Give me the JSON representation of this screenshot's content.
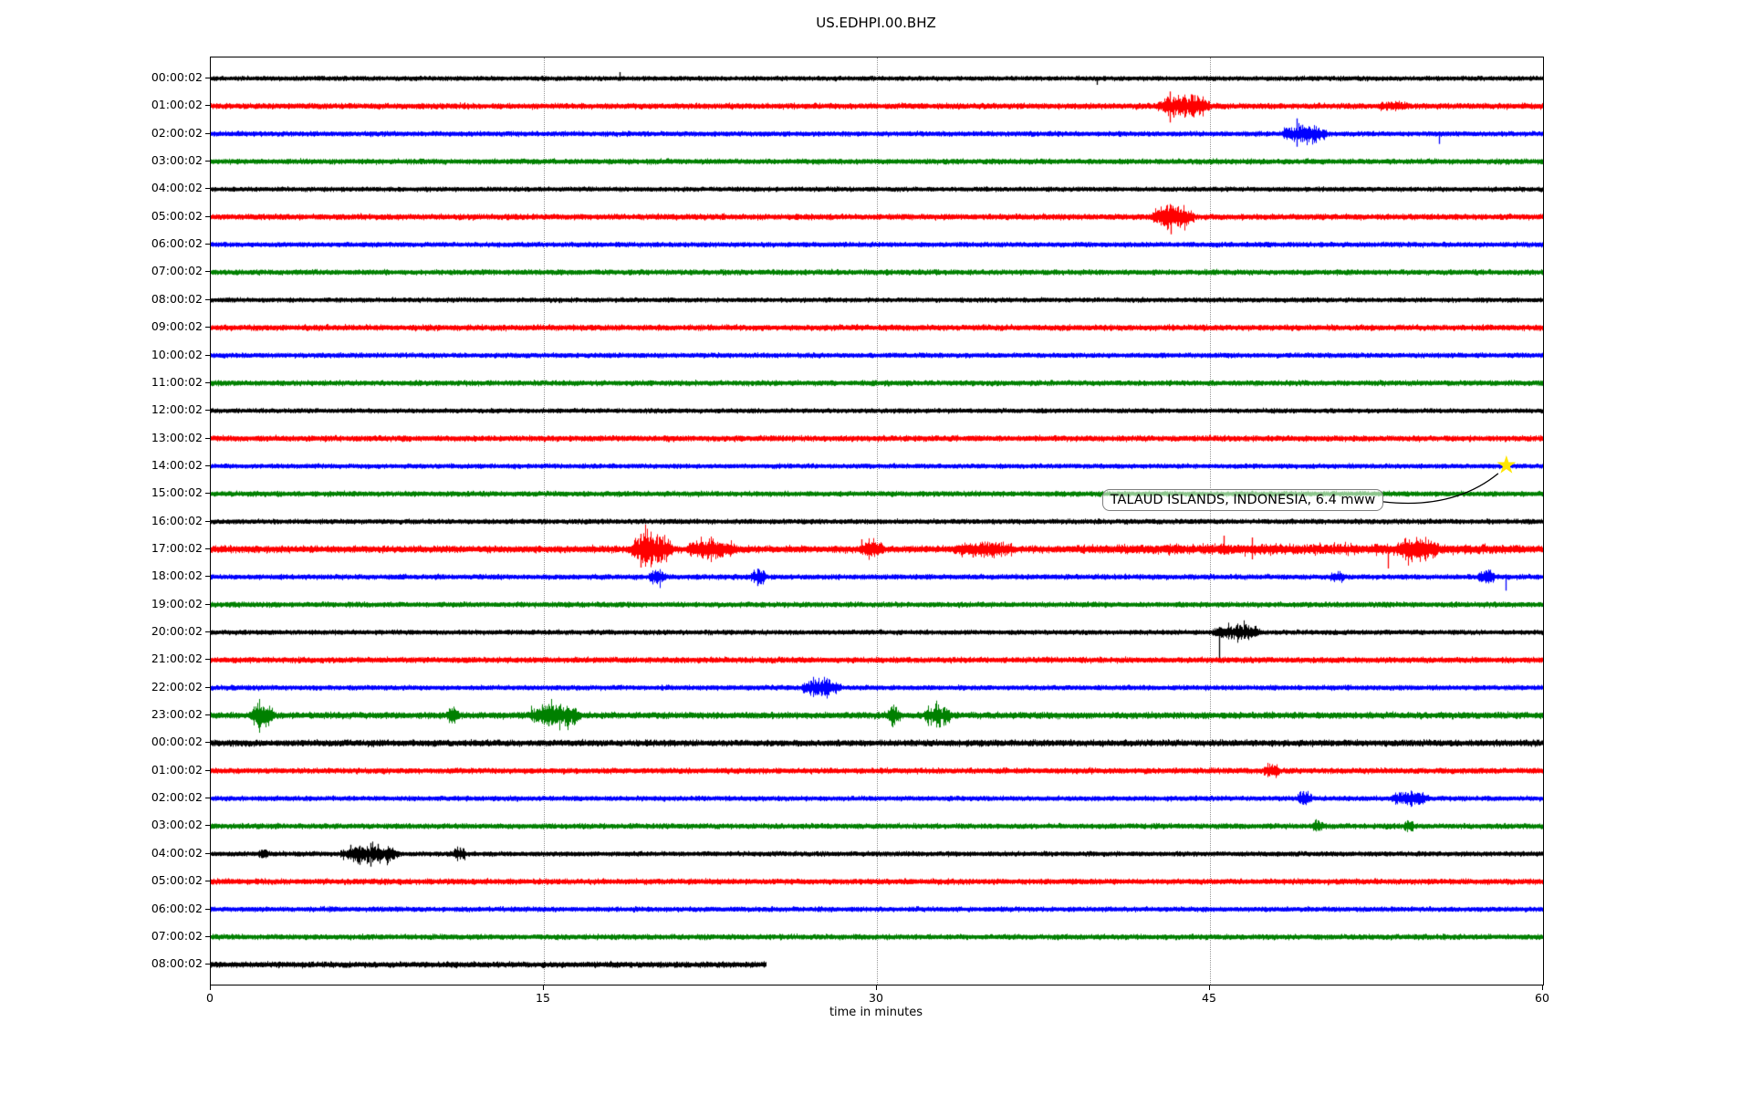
{
  "title": "US.EDHPI.00.BHZ",
  "xlabel": "time in minutes",
  "x_ticks": [
    "0",
    "15",
    "30",
    "45",
    "60"
  ],
  "annotation": {
    "label": "TALAUD ISLANDS, INDONESIA, 6.4 mww",
    "marker": "star",
    "marker_row": 14,
    "marker_minute": 58.35,
    "box_right_minute": 52.8,
    "box_center_row": 15.25
  },
  "colors": {
    "black": "#000000",
    "red": "#ff0000",
    "blue": "#0000ff",
    "green": "#008000",
    "grid": "#999999",
    "star": "#ffe600"
  },
  "chart_data": {
    "type": "line",
    "subtype": "helicorder-seismogram",
    "title": "US.EDHPI.00.BHZ",
    "xlabel": "time in minutes",
    "x_range_minutes": [
      0,
      60
    ],
    "x_tick_minutes": [
      0,
      15,
      30,
      45,
      60
    ],
    "gridline_minutes": [
      15,
      30,
      45
    ],
    "grid": "vertical-dotted",
    "legend": "none",
    "event_annotation": {
      "text": "TALAUD ISLANDS, INDONESIA, 6.4 mww",
      "row_label": "14:00:02",
      "minute": 58.35
    },
    "rows": [
      {
        "label": "00:00:02",
        "color": "black",
        "noise": 1.25,
        "end": 60,
        "events": [],
        "spikes": [
          {
            "t": 18.4,
            "up": 7,
            "down": 3
          },
          {
            "t": 39.9,
            "up": 2,
            "down": 7
          }
        ]
      },
      {
        "label": "01:00:02",
        "color": "red",
        "noise": 1.6,
        "end": 60,
        "events": [
          {
            "t0": 42.6,
            "t1": 45.0,
            "amp": 3.5
          },
          {
            "t0": 52.5,
            "t1": 54.0,
            "amp": 0.8
          }
        ],
        "spikes": [
          {
            "t": 43.2,
            "up": 16,
            "down": 18
          },
          {
            "t": 43.35,
            "up": 10,
            "down": 12
          },
          {
            "t": 44.3,
            "up": 12,
            "down": 8
          },
          {
            "t": 44.5,
            "up": 8,
            "down": 6
          }
        ]
      },
      {
        "label": "02:00:02",
        "color": "blue",
        "noise": 1.35,
        "end": 60,
        "events": [
          {
            "t0": 48.2,
            "t1": 50.3,
            "amp": 3.0
          }
        ],
        "spikes": [
          {
            "t": 48.9,
            "up": 17,
            "down": 14
          },
          {
            "t": 49.15,
            "up": 10,
            "down": 9
          },
          {
            "t": 55.3,
            "up": 2,
            "down": 11
          }
        ]
      },
      {
        "label": "03:00:02",
        "color": "green",
        "noise": 1.45,
        "end": 60,
        "events": [],
        "spikes": []
      },
      {
        "label": "04:00:02",
        "color": "black",
        "noise": 1.25,
        "end": 60,
        "events": [],
        "spikes": []
      },
      {
        "label": "05:00:02",
        "color": "red",
        "noise": 1.6,
        "end": 60,
        "events": [
          {
            "t0": 42.3,
            "t1": 44.3,
            "amp": 3.2
          }
        ],
        "spikes": [
          {
            "t": 43.25,
            "up": 13,
            "down": 19
          },
          {
            "t": 42.9,
            "up": 7,
            "down": 5
          }
        ]
      },
      {
        "label": "06:00:02",
        "color": "blue",
        "noise": 1.35,
        "end": 60,
        "events": [],
        "spikes": []
      },
      {
        "label": "07:00:02",
        "color": "green",
        "noise": 1.45,
        "end": 60,
        "events": [],
        "spikes": []
      },
      {
        "label": "08:00:02",
        "color": "black",
        "noise": 1.25,
        "end": 60,
        "events": [],
        "spikes": []
      },
      {
        "label": "09:00:02",
        "color": "red",
        "noise": 1.6,
        "end": 60,
        "events": [],
        "spikes": []
      },
      {
        "label": "10:00:02",
        "color": "blue",
        "noise": 1.35,
        "end": 60,
        "events": [],
        "spikes": []
      },
      {
        "label": "11:00:02",
        "color": "green",
        "noise": 1.45,
        "end": 60,
        "events": [],
        "spikes": []
      },
      {
        "label": "12:00:02",
        "color": "black",
        "noise": 1.25,
        "end": 60,
        "events": [],
        "spikes": []
      },
      {
        "label": "13:00:02",
        "color": "red",
        "noise": 1.6,
        "end": 60,
        "events": [],
        "spikes": []
      },
      {
        "label": "14:00:02",
        "color": "blue",
        "noise": 1.3,
        "end": 60,
        "events": [],
        "spikes": []
      },
      {
        "label": "15:00:02",
        "color": "green",
        "noise": 1.45,
        "end": 60,
        "events": [],
        "spikes": []
      },
      {
        "label": "16:00:02",
        "color": "black",
        "noise": 1.35,
        "end": 60,
        "events": [],
        "spikes": []
      },
      {
        "label": "17:00:02",
        "color": "red",
        "noise": 2.0,
        "end": 60,
        "events": [
          {
            "t0": 18.9,
            "t1": 20.8,
            "amp": 4.5
          },
          {
            "t0": 21.4,
            "t1": 23.7,
            "amp": 2.2
          },
          {
            "t0": 29.2,
            "t1": 30.3,
            "amp": 1.8
          },
          {
            "t0": 33.4,
            "t1": 36.2,
            "amp": 1.6
          },
          {
            "t0": 38.0,
            "t1": 60.0,
            "amp": 0.5
          },
          {
            "t0": 53.4,
            "t1": 55.3,
            "amp": 2.2
          }
        ],
        "spikes": [
          {
            "t": 19.35,
            "up": 17,
            "down": 20
          },
          {
            "t": 19.6,
            "up": 12,
            "down": 14
          },
          {
            "t": 20.3,
            "up": 10,
            "down": 12
          },
          {
            "t": 22.4,
            "up": 8,
            "down": 6
          },
          {
            "t": 29.3,
            "up": 11,
            "down": 4
          },
          {
            "t": 34.3,
            "up": 3,
            "down": 9
          },
          {
            "t": 45.6,
            "up": 15,
            "down": 6
          },
          {
            "t": 46.9,
            "up": 13,
            "down": 11
          },
          {
            "t": 53.0,
            "up": 3,
            "down": 21
          },
          {
            "t": 54.3,
            "up": 8,
            "down": 8
          }
        ]
      },
      {
        "label": "18:00:02",
        "color": "blue",
        "noise": 1.4,
        "end": 60,
        "events": [
          {
            "t0": 19.7,
            "t1": 20.5,
            "amp": 2.0
          },
          {
            "t0": 24.3,
            "t1": 25.0,
            "amp": 2.5
          },
          {
            "t0": 50.4,
            "t1": 51.1,
            "amp": 1.5
          },
          {
            "t0": 57.0,
            "t1": 57.8,
            "amp": 2.2
          }
        ],
        "spikes": [
          {
            "t": 24.6,
            "up": 9,
            "down": 10
          },
          {
            "t": 57.4,
            "up": 7,
            "down": 6
          },
          {
            "t": 58.3,
            "up": 3,
            "down": 15
          }
        ]
      },
      {
        "label": "19:00:02",
        "color": "green",
        "noise": 1.45,
        "end": 60,
        "events": [],
        "spikes": []
      },
      {
        "label": "20:00:02",
        "color": "black",
        "noise": 1.3,
        "end": 60,
        "events": [
          {
            "t0": 45.1,
            "t1": 47.3,
            "amp": 2.6
          }
        ],
        "spikes": [
          {
            "t": 45.4,
            "up": 6,
            "down": 28
          },
          {
            "t": 46.2,
            "up": 8,
            "down": 5
          },
          {
            "t": 46.6,
            "up": 9,
            "down": 4
          },
          {
            "t": 47.0,
            "up": 7,
            "down": 5
          }
        ]
      },
      {
        "label": "21:00:02",
        "color": "red",
        "noise": 1.6,
        "end": 60,
        "events": [],
        "spikes": []
      },
      {
        "label": "22:00:02",
        "color": "blue",
        "noise": 1.35,
        "end": 60,
        "events": [
          {
            "t0": 26.6,
            "t1": 28.4,
            "amp": 2.8
          }
        ],
        "spikes": [
          {
            "t": 27.2,
            "up": 9,
            "down": 8
          },
          {
            "t": 27.5,
            "up": 7,
            "down": 9
          }
        ]
      },
      {
        "label": "23:00:02",
        "color": "green",
        "noise": 1.8,
        "end": 60,
        "events": [
          {
            "t0": 1.7,
            "t1": 2.9,
            "amp": 3.0
          },
          {
            "t0": 10.6,
            "t1": 11.2,
            "amp": 2.0
          },
          {
            "t0": 14.3,
            "t1": 16.7,
            "amp": 3.0
          },
          {
            "t0": 30.4,
            "t1": 31.1,
            "amp": 2.0
          },
          {
            "t0": 32.1,
            "t1": 33.4,
            "amp": 2.2
          }
        ],
        "spikes": [
          {
            "t": 2.1,
            "up": 8,
            "down": 10
          },
          {
            "t": 2.5,
            "up": 6,
            "down": 7
          },
          {
            "t": 14.9,
            "up": 10,
            "down": 5
          },
          {
            "t": 15.2,
            "up": 9,
            "down": 12
          },
          {
            "t": 33.0,
            "up": 3,
            "down": 10
          }
        ]
      },
      {
        "label": "00:00:02",
        "color": "black",
        "noise": 1.8,
        "end": 60,
        "events": [],
        "spikes": []
      },
      {
        "label": "01:00:02",
        "color": "red",
        "noise": 1.55,
        "end": 60,
        "events": [
          {
            "t0": 47.4,
            "t1": 48.1,
            "amp": 1.8
          }
        ],
        "spikes": []
      },
      {
        "label": "02:00:02",
        "color": "blue",
        "noise": 1.35,
        "end": 60,
        "events": [
          {
            "t0": 48.9,
            "t1": 49.6,
            "amp": 2.2
          },
          {
            "t0": 53.1,
            "t1": 54.9,
            "amp": 2.4
          }
        ],
        "spikes": [
          {
            "t": 49.2,
            "up": 8,
            "down": 7
          },
          {
            "t": 53.8,
            "up": 7,
            "down": 6
          },
          {
            "t": 54.4,
            "up": 6,
            "down": 7
          }
        ]
      },
      {
        "label": "03:00:02",
        "color": "green",
        "noise": 1.45,
        "end": 60,
        "events": [
          {
            "t0": 49.6,
            "t1": 50.1,
            "amp": 1.6
          },
          {
            "t0": 53.7,
            "t1": 54.2,
            "amp": 1.6
          }
        ],
        "spikes": []
      },
      {
        "label": "04:00:02",
        "color": "black",
        "noise": 1.3,
        "end": 60,
        "events": [
          {
            "t0": 2.1,
            "t1": 2.6,
            "amp": 1.8
          },
          {
            "t0": 5.8,
            "t1": 8.5,
            "amp": 3.2
          },
          {
            "t0": 10.9,
            "t1": 11.5,
            "amp": 2.0
          }
        ],
        "spikes": [
          {
            "t": 6.3,
            "up": 10,
            "down": 6
          },
          {
            "t": 6.7,
            "up": 9,
            "down": 12
          },
          {
            "t": 7.2,
            "up": 12,
            "down": 14
          },
          {
            "t": 7.5,
            "up": 11,
            "down": 8
          },
          {
            "t": 11.2,
            "up": 7,
            "down": 5
          }
        ]
      },
      {
        "label": "05:00:02",
        "color": "red",
        "noise": 1.55,
        "end": 60,
        "events": [],
        "spikes": []
      },
      {
        "label": "06:00:02",
        "color": "blue",
        "noise": 1.35,
        "end": 60,
        "events": [],
        "spikes": []
      },
      {
        "label": "07:00:02",
        "color": "green",
        "noise": 1.45,
        "end": 60,
        "events": [],
        "spikes": []
      },
      {
        "label": "08:00:02",
        "color": "black",
        "noise": 1.6,
        "end": 25.0,
        "events": [],
        "spikes": []
      }
    ]
  }
}
